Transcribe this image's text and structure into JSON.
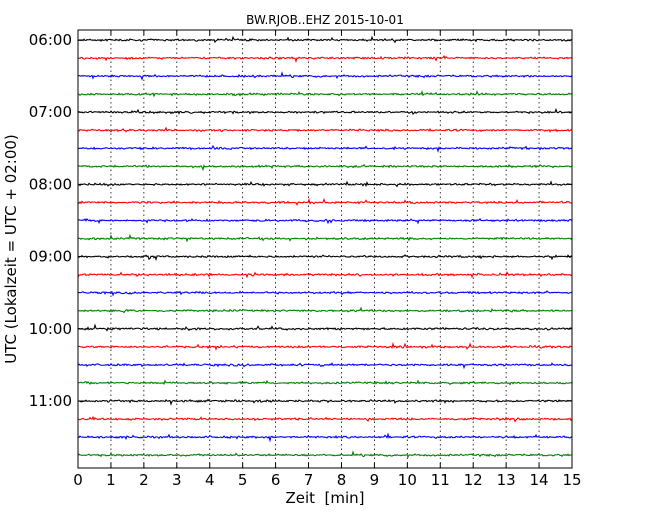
{
  "chart_data": {
    "type": "line",
    "title": "BW.RJOB..EHZ 2015-10-01",
    "xlabel": "Zeit  [min]",
    "ylabel": "UTC (Lokalzeit = UTC + 02:00)",
    "xlim": [
      0,
      15
    ],
    "x_ticks": [
      "0",
      "1",
      "2",
      "3",
      "4",
      "5",
      "6",
      "7",
      "8",
      "9",
      "10",
      "11",
      "12",
      "13",
      "14",
      "15"
    ],
    "y_tick_labels": [
      "06:00",
      "07:00",
      "08:00",
      "09:00",
      "10:00",
      "11:00"
    ],
    "grid": "vertical dotted lines at each minute",
    "trace_colors": [
      "#000000",
      "#ff0000",
      "#0000ff",
      "#008000"
    ],
    "series": [
      {
        "start": "06:00",
        "color": "#000000"
      },
      {
        "start": "06:15",
        "color": "#ff0000"
      },
      {
        "start": "06:30",
        "color": "#0000ff"
      },
      {
        "start": "06:45",
        "color": "#008000"
      },
      {
        "start": "07:00",
        "color": "#000000"
      },
      {
        "start": "07:15",
        "color": "#ff0000"
      },
      {
        "start": "07:30",
        "color": "#0000ff"
      },
      {
        "start": "07:45",
        "color": "#008000"
      },
      {
        "start": "08:00",
        "color": "#000000"
      },
      {
        "start": "08:15",
        "color": "#ff0000"
      },
      {
        "start": "08:30",
        "color": "#0000ff"
      },
      {
        "start": "08:45",
        "color": "#008000"
      },
      {
        "start": "09:00",
        "color": "#000000"
      },
      {
        "start": "09:15",
        "color": "#ff0000"
      },
      {
        "start": "09:30",
        "color": "#0000ff"
      },
      {
        "start": "09:45",
        "color": "#008000"
      },
      {
        "start": "10:00",
        "color": "#000000"
      },
      {
        "start": "10:15",
        "color": "#ff0000"
      },
      {
        "start": "10:30",
        "color": "#0000ff"
      },
      {
        "start": "10:45",
        "color": "#008000"
      },
      {
        "start": "11:00",
        "color": "#000000"
      },
      {
        "start": "11:15",
        "color": "#ff0000"
      },
      {
        "start": "11:30",
        "color": "#0000ff"
      },
      {
        "start": "11:45",
        "color": "#008000"
      }
    ]
  }
}
